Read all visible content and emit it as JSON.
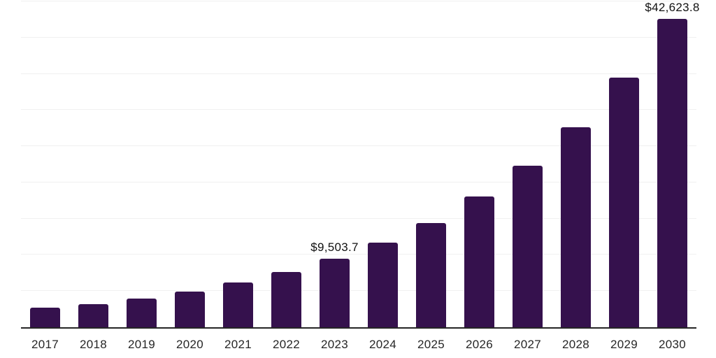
{
  "chart_data": {
    "type": "bar",
    "categories": [
      "2017",
      "2018",
      "2019",
      "2020",
      "2021",
      "2022",
      "2023",
      "2024",
      "2025",
      "2026",
      "2027",
      "2028",
      "2029",
      "2030"
    ],
    "values": [
      2660,
      3200,
      3970,
      4970,
      6150,
      7630,
      9503.7,
      11700,
      14420,
      18050,
      22280,
      27630,
      34450,
      42623.8
    ],
    "bar_labels": [
      "",
      "",
      "",
      "",
      "",
      "",
      "$9,503.7",
      "",
      "",
      "",
      "",
      "",
      "",
      "$42,623.8"
    ],
    "ylim": [
      0,
      45000
    ],
    "gridline_step": 5000,
    "grid": true,
    "legend": "none",
    "colors": {
      "bar": "#35114d",
      "gridline": "#f0f0f0",
      "axis_line": "#262626",
      "tick_label": "#262626",
      "value_label": "#111111"
    }
  }
}
